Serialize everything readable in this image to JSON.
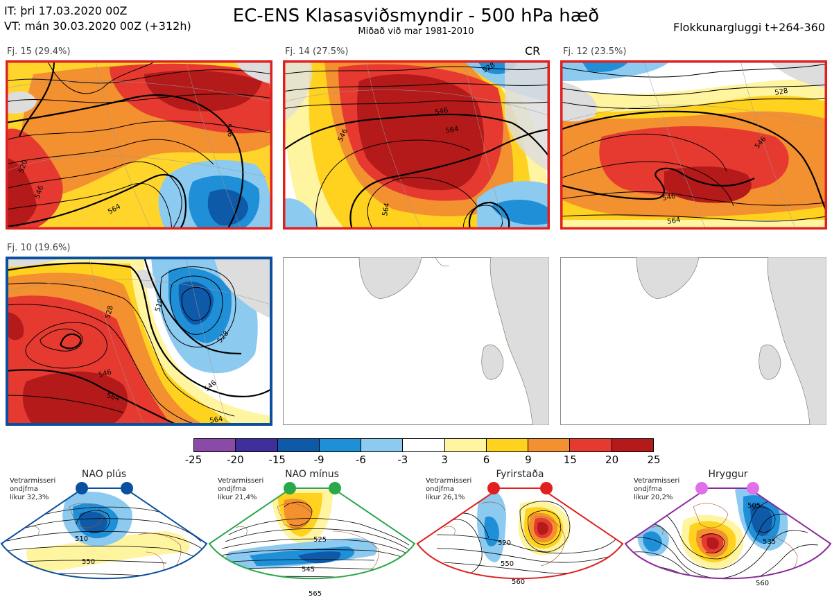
{
  "header": {
    "it": "IT: þri 17.03.2020 00Z",
    "vt": "VT: mán 30.03.2020 00Z  (+312h)",
    "title": "EC-ENS Klasasviðsmyndir - 500 hPa hæð",
    "subtitle": "Miðað við mar 1981-2010",
    "window": "Flokkunargluggi t+264-360"
  },
  "panels": [
    {
      "label": "Fj. 15 (29.4%)",
      "frame_color": "#e02020",
      "contours": [
        "546",
        "520",
        "546",
        "564"
      ]
    },
    {
      "label": "Fj. 14 (27.5%)",
      "frame_color": "#e02020",
      "tag": "CR",
      "contours": [
        "546",
        "564",
        "546",
        "564",
        "528"
      ]
    },
    {
      "label": "Fj. 12 (23.5%)",
      "frame_color": "#e02020",
      "contours": [
        "528",
        "546",
        "546",
        "564"
      ]
    },
    {
      "label": "Fj. 10 (19.6%)",
      "frame_color": "#0a4fa0",
      "contours": [
        "510",
        "528",
        "528",
        "546",
        "546",
        "564",
        "564"
      ]
    }
  ],
  "colorbar": {
    "ticks": [
      "-25",
      "-20",
      "-15",
      "-9",
      "-6",
      "-3",
      "3",
      "6",
      "9",
      "15",
      "20",
      "25"
    ],
    "colors": [
      "#8a4aa8",
      "#3f2f9a",
      "#0f5aa8",
      "#1f8fd8",
      "#8ccaf0",
      "#ffffff",
      "#fff4a0",
      "#ffd21f",
      "#f39030",
      "#e63a30",
      "#b51a1a"
    ]
  },
  "regimes": [
    {
      "name": "NAO plús",
      "note": [
        "Vetrarmisseri",
        "ondjfma",
        "líkur 32,3%"
      ],
      "color": "#0a4fa0",
      "contours": [
        "510",
        "550"
      ]
    },
    {
      "name": "NAO mínus",
      "note": [
        "Vetrarmisseri",
        "ondjfma",
        "líkur 21,4%"
      ],
      "color": "#2aa84a",
      "contours": [
        "525",
        "545",
        "565"
      ]
    },
    {
      "name": "Fyrirstaða",
      "note": [
        "Vetrarmisseri",
        "ondjfma",
        "líkur 26,1%"
      ],
      "color": "#e02020",
      "contours": [
        "520",
        "550",
        "560"
      ]
    },
    {
      "name": "Hryggur",
      "note": [
        "Vetrarmisseri",
        "ondjfma",
        "líkur 20,2%"
      ],
      "color": "#e070e8",
      "contours": [
        "505",
        "535",
        "560"
      ]
    }
  ]
}
